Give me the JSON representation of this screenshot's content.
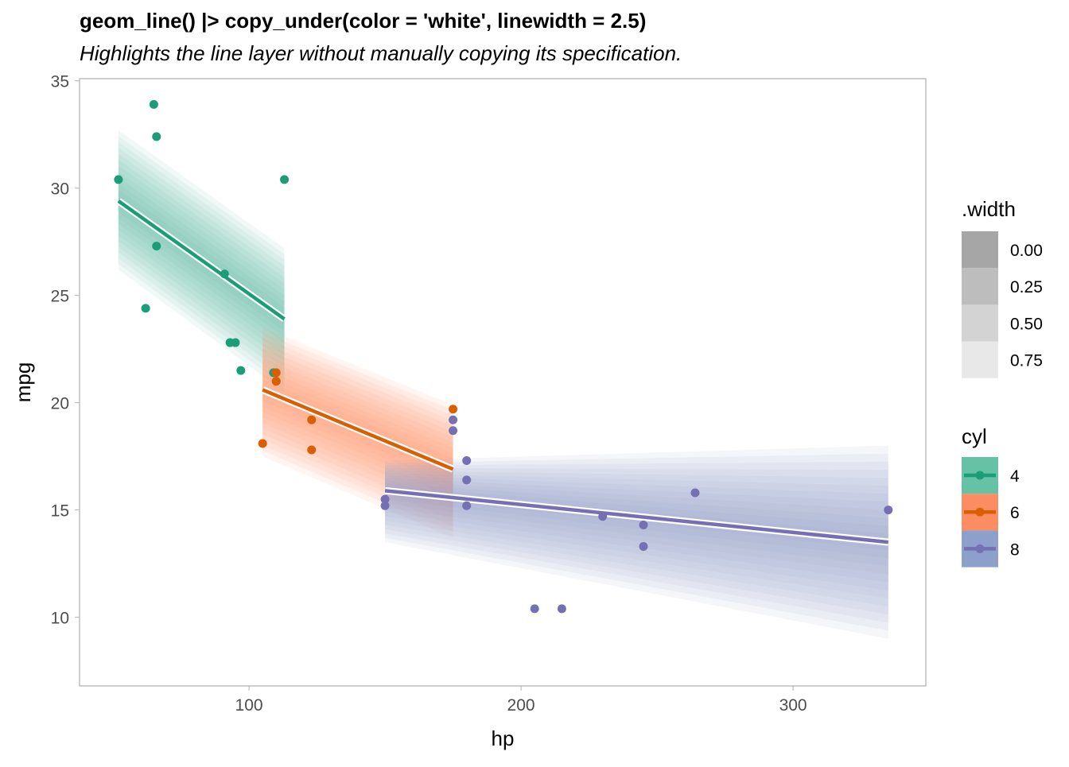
{
  "chart_data": {
    "type": "scatter",
    "title": "geom_line() |> copy_under(color = 'white', linewidth = 2.5)",
    "subtitle": "Highlights the line layer without manually copying its specification.",
    "xlabel": "hp",
    "ylabel": "mpg",
    "xlim": [
      37.7,
      348.8
    ],
    "ylim": [
      6.8,
      35.1
    ],
    "xticks": [
      100,
      200,
      300
    ],
    "yticks": [
      10,
      15,
      20,
      25,
      30,
      35
    ],
    "grid": false,
    "legend_placement": "right",
    "width_legend": {
      "title": ".width",
      "entries": [
        "0.00",
        "0.25",
        "0.50",
        "0.75"
      ],
      "colors": [
        "#a6a6a6",
        "#bdbdbd",
        "#d3d3d3",
        "#e8e8e8"
      ]
    },
    "cyl_legend": {
      "title": "cyl",
      "entries": [
        "4",
        "6",
        "8"
      ]
    },
    "series": [
      {
        "name": "4",
        "color": "#1b9e77",
        "fill": "#66c2a5",
        "points": [
          [
            93,
            22.8
          ],
          [
            62,
            24.4
          ],
          [
            95,
            22.8
          ],
          [
            66,
            32.4
          ],
          [
            52,
            30.4
          ],
          [
            65,
            33.9
          ],
          [
            97,
            21.5
          ],
          [
            66,
            27.3
          ],
          [
            91,
            26.0
          ],
          [
            113,
            30.4
          ],
          [
            109,
            21.4
          ]
        ],
        "line": [
          [
            52,
            29.4
          ],
          [
            113,
            23.9
          ]
        ],
        "band_upper": [
          [
            52,
            32.7
          ],
          [
            113,
            27.2
          ]
        ],
        "band_lower": [
          [
            52,
            26.2
          ],
          [
            113,
            20.5
          ]
        ]
      },
      {
        "name": "6",
        "color": "#d95f02",
        "fill": "#fc8d62",
        "points": [
          [
            110,
            21.0
          ],
          [
            110,
            21.0
          ],
          [
            110,
            21.4
          ],
          [
            105,
            18.1
          ],
          [
            123,
            19.2
          ],
          [
            123,
            17.8
          ],
          [
            175,
            19.7
          ]
        ],
        "line": [
          [
            105,
            20.6
          ],
          [
            175,
            16.9
          ]
        ],
        "band_upper": [
          [
            105,
            23.5
          ],
          [
            175,
            19.9
          ]
        ],
        "band_lower": [
          [
            105,
            17.5
          ],
          [
            175,
            13.7
          ]
        ]
      },
      {
        "name": "8",
        "color": "#7570b3",
        "fill": "#8da0cb",
        "points": [
          [
            175,
            18.7
          ],
          [
            245,
            14.3
          ],
          [
            180,
            16.4
          ],
          [
            180,
            17.3
          ],
          [
            180,
            15.2
          ],
          [
            205,
            10.4
          ],
          [
            215,
            10.4
          ],
          [
            230,
            14.7
          ],
          [
            150,
            15.5
          ],
          [
            150,
            15.2
          ],
          [
            245,
            13.3
          ],
          [
            175,
            19.2
          ],
          [
            264,
            15.8
          ],
          [
            335,
            15.0
          ]
        ],
        "line": [
          [
            150,
            15.9
          ],
          [
            335,
            13.5
          ]
        ],
        "band_upper": [
          [
            150,
            17.3
          ],
          [
            335,
            18.0
          ]
        ],
        "band_lower": [
          [
            150,
            13.5
          ],
          [
            335,
            9.0
          ]
        ]
      }
    ]
  }
}
